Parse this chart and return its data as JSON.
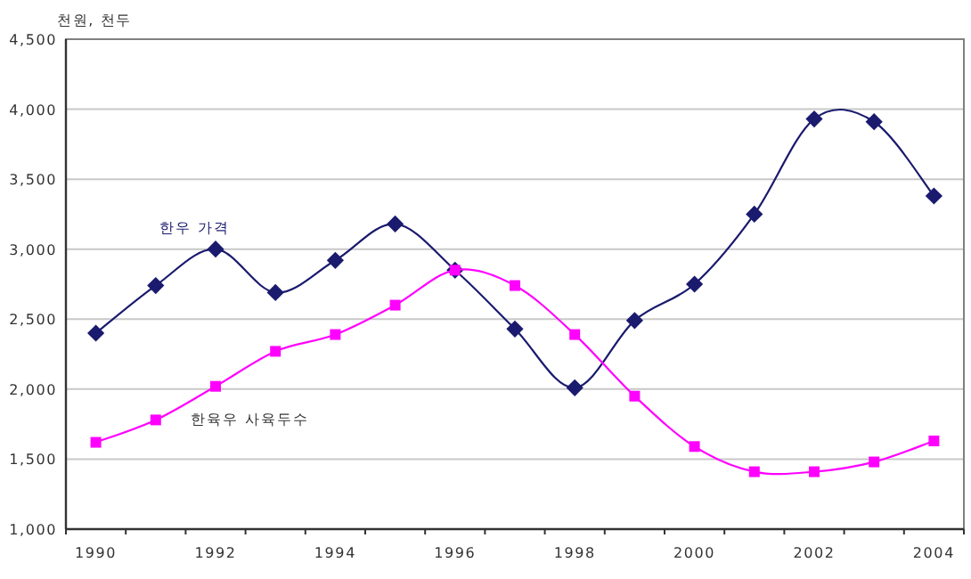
{
  "chart_data": {
    "type": "line",
    "ylabel": "천원, 천두",
    "categories": [
      "1990",
      null,
      "1992",
      null,
      "1994",
      null,
      "1996",
      null,
      "1998",
      null,
      "2000",
      null,
      "2002",
      null,
      "2004"
    ],
    "series": [
      {
        "name": "한우 가격",
        "color": "#1a1a6e",
        "marker": "diamond",
        "values": [
          2400,
          2740,
          3000,
          2690,
          2920,
          3180,
          2850,
          2430,
          2010,
          2490,
          2750,
          3250,
          3930,
          3910,
          3380
        ]
      },
      {
        "name": "한육우 사육두수",
        "color": "#ff00ff",
        "marker": "square",
        "values": [
          1620,
          1780,
          2020,
          2270,
          2390,
          2600,
          2850,
          2740,
          2390,
          1950,
          1590,
          1410,
          1410,
          1480,
          1630
        ]
      }
    ],
    "ylim": [
      1000,
      4500
    ],
    "yticks": [
      {
        "value": 1000,
        "label": "1,000"
      },
      {
        "value": 1500,
        "label": "1,500"
      },
      {
        "value": 2000,
        "label": "2,000"
      },
      {
        "value": 2500,
        "label": "2,500"
      },
      {
        "value": 3000,
        "label": "3,000"
      },
      {
        "value": 3500,
        "label": "3,500"
      },
      {
        "value": 4000,
        "label": "4,000"
      },
      {
        "value": 4500,
        "label": "4,500"
      }
    ],
    "grid": "y"
  }
}
